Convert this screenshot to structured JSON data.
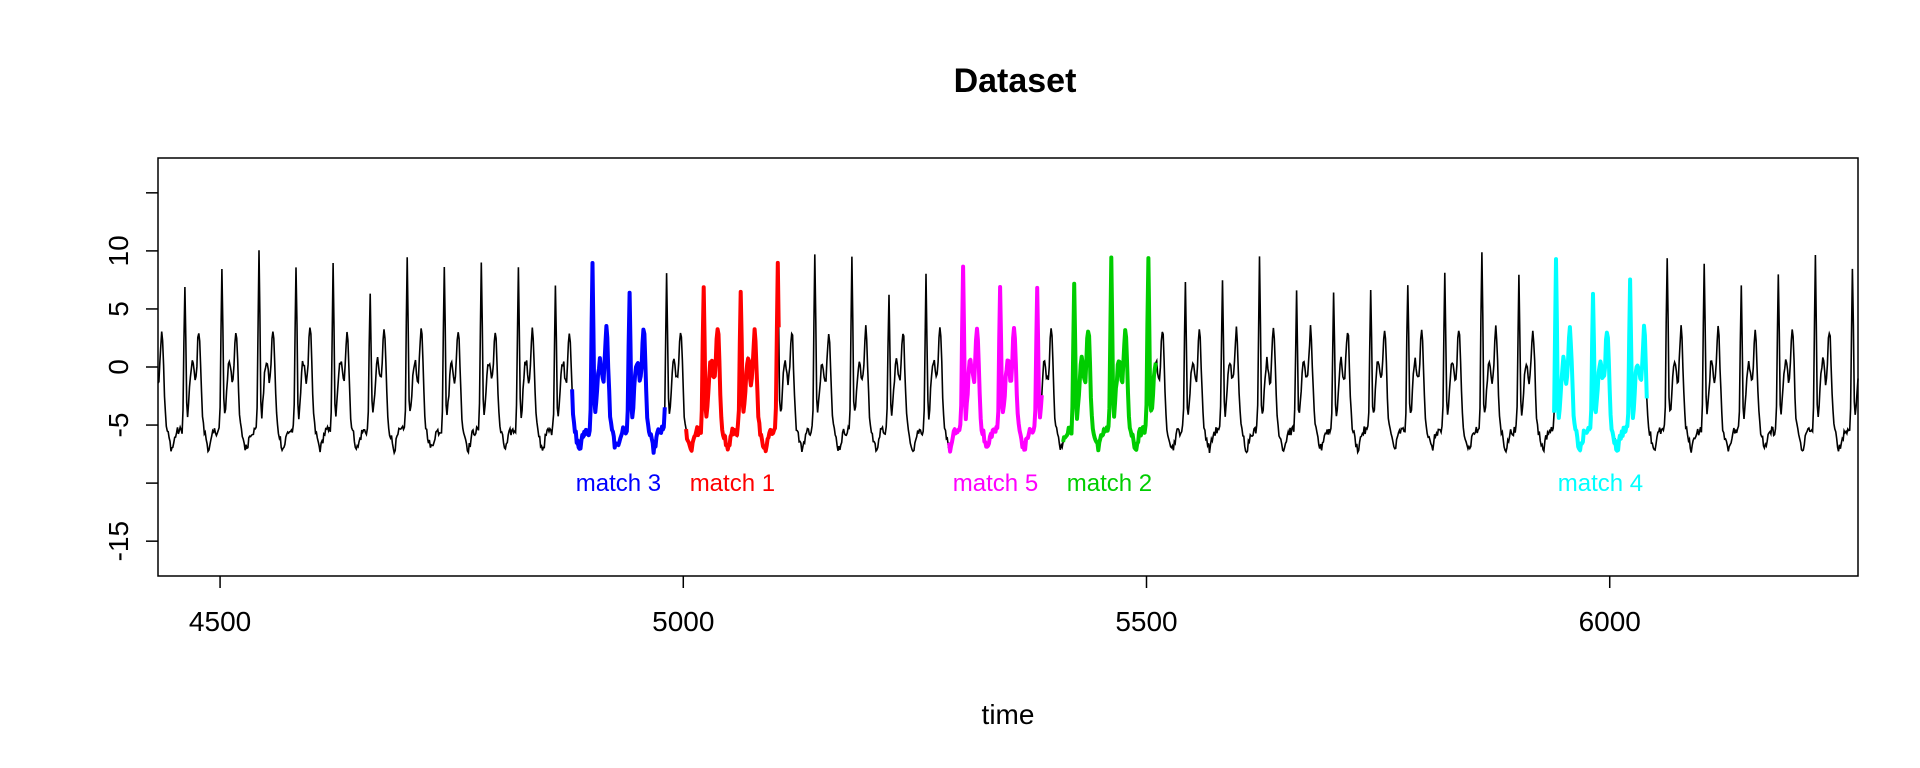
{
  "chart_data": {
    "type": "line",
    "title": "Dataset",
    "xlabel": "time",
    "ylabel": "",
    "xlim": [
      4433,
      6268
    ],
    "ylim": [
      -18,
      18
    ],
    "grid": false,
    "legend": "none",
    "x_ticks": [
      4500,
      5000,
      5500,
      6000
    ],
    "x_tick_labels": [
      "4500",
      "5000",
      "5500",
      "6000"
    ],
    "y_ticks": [
      -15,
      -10,
      -5,
      0,
      5,
      10,
      15
    ],
    "y_tick_labels": [
      "-15",
      "",
      "-5",
      "0",
      "5",
      "10",
      ""
    ],
    "series_color": "#000000",
    "cycle_period": 40,
    "x_start": 4433,
    "x_end": 6268,
    "matches": [
      {
        "label": "match 3",
        "start": 4880,
        "end": 4980,
        "color": "#0000FF"
      },
      {
        "label": "match 1",
        "start": 5003,
        "end": 5103,
        "color": "#FF0000"
      },
      {
        "label": "match 5",
        "start": 5287,
        "end": 5387,
        "color": "#FF00FF"
      },
      {
        "label": "match 2",
        "start": 5410,
        "end": 5510,
        "color": "#00CD00"
      },
      {
        "label": "match 4",
        "start": 5940,
        "end": 6040,
        "color": "#00FFFF"
      }
    ],
    "match_label_y": -10
  }
}
